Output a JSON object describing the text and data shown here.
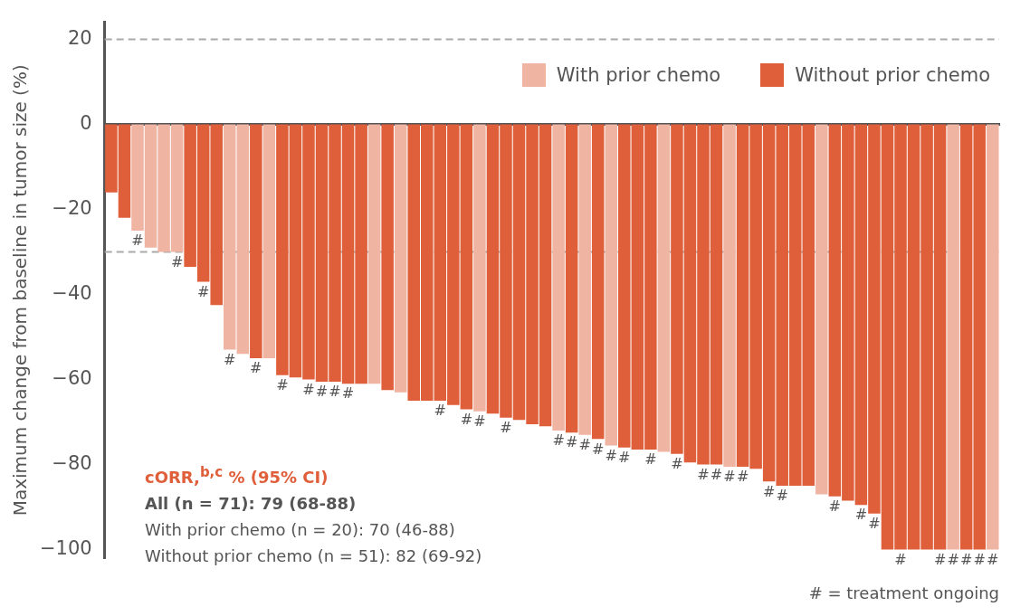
{
  "chart_data": {
    "type": "bar",
    "ylabel": "Maximum change from baseline in tumor size (%)",
    "categories": [
      null,
      null,
      null,
      null,
      null,
      null,
      null,
      null,
      null,
      null,
      null,
      null,
      null,
      null,
      null,
      null,
      null,
      null,
      null,
      null,
      null,
      null,
      null,
      null,
      null,
      null,
      null,
      null,
      null,
      null,
      null,
      null,
      null,
      null,
      null,
      null,
      null,
      null,
      null,
      null,
      null,
      null,
      null,
      null,
      null,
      null,
      null,
      null,
      null,
      null,
      null,
      null,
      null,
      null,
      null,
      null,
      null,
      null,
      null,
      null,
      null,
      null,
      null,
      null,
      null,
      null,
      null,
      null
    ],
    "series": [
      {
        "name": "With prior chemo",
        "color": "#f0b4a3",
        "values": [
          null,
          null,
          -25,
          -29,
          -30,
          -30,
          null,
          null,
          null,
          -53,
          -54,
          null,
          -55,
          null,
          null,
          null,
          null,
          null,
          null,
          null,
          -61,
          null,
          -63,
          null,
          null,
          null,
          null,
          null,
          -67.5,
          null,
          null,
          null,
          null,
          null,
          -72,
          null,
          -73,
          null,
          -75.5,
          null,
          null,
          null,
          -77,
          null,
          null,
          null,
          null,
          -80.5,
          null,
          null,
          null,
          null,
          null,
          null,
          -87,
          null,
          null,
          null,
          null,
          null,
          null,
          null,
          null,
          null,
          -100,
          null,
          null,
          -100
        ],
        "value_labels": [
          null,
          null,
          "#",
          null,
          null,
          "#",
          null,
          null,
          null,
          "#",
          null,
          null,
          null,
          null,
          null,
          null,
          null,
          null,
          null,
          null,
          null,
          null,
          null,
          null,
          null,
          null,
          null,
          null,
          "#",
          null,
          null,
          null,
          null,
          null,
          "#",
          null,
          "#",
          null,
          "#",
          null,
          null,
          null,
          null,
          null,
          null,
          null,
          null,
          "#",
          null,
          null,
          null,
          null,
          null,
          null,
          null,
          null,
          null,
          null,
          null,
          null,
          null,
          null,
          null,
          null,
          "#",
          null,
          null,
          "#"
        ]
      },
      {
        "name": "Without prior chemo",
        "color": "#e05f3b",
        "values": [
          -16,
          -22,
          null,
          null,
          null,
          null,
          -33.5,
          -37,
          -42.5,
          null,
          null,
          -55,
          null,
          -59,
          -59.5,
          -60,
          -60.5,
          -60.5,
          -61,
          -61,
          null,
          -62.5,
          null,
          -65,
          -65,
          -65,
          -66,
          -67,
          null,
          -68,
          -69,
          -69.5,
          -70.5,
          -71,
          null,
          -72.5,
          null,
          -74,
          null,
          -76,
          -76.5,
          -76.5,
          null,
          -77.5,
          -79.5,
          -80,
          -80,
          null,
          -80.5,
          -81,
          -84,
          -85,
          -85,
          -85,
          null,
          -87.5,
          -88.5,
          -89.5,
          -91.5,
          -100,
          -100,
          -100,
          -100,
          -100,
          null,
          -100,
          -100,
          null
        ],
        "value_labels": [
          null,
          null,
          null,
          null,
          null,
          null,
          null,
          "#",
          null,
          null,
          null,
          "#",
          null,
          "#",
          null,
          "#",
          "#",
          "#",
          "#",
          null,
          null,
          null,
          null,
          null,
          null,
          "#",
          null,
          "#",
          null,
          null,
          "#",
          null,
          null,
          null,
          null,
          "#",
          null,
          "#",
          null,
          "#",
          null,
          "#",
          null,
          "#",
          null,
          "#",
          "#",
          null,
          "#",
          null,
          "#",
          "#",
          null,
          null,
          null,
          "#",
          null,
          "#",
          "#",
          null,
          "#",
          null,
          null,
          "#",
          null,
          "#",
          "#",
          null
        ]
      }
    ],
    "ylim": [
      -102,
      24
    ],
    "yticks": [
      20,
      0,
      -20,
      -40,
      -60,
      -80,
      -100
    ],
    "ref_lines": [
      {
        "axis": "y",
        "value": 20,
        "color": "#aaaaaa",
        "line_style": "dashed"
      },
      {
        "axis": "y",
        "value": -30,
        "color": "#aaaaaa",
        "line_style": "dashed"
      }
    ],
    "legend": "top right",
    "annotations": [
      "cORR,$^{b,c}$ % (95% CI)",
      "All (n = 71): 79 (68-88)",
      "With prior chemo (n = 20): 70 (46-88)",
      "Without prior chemo (n = 51): 82 (69-92)",
      "# = treatment ongoing"
    ]
  }
}
